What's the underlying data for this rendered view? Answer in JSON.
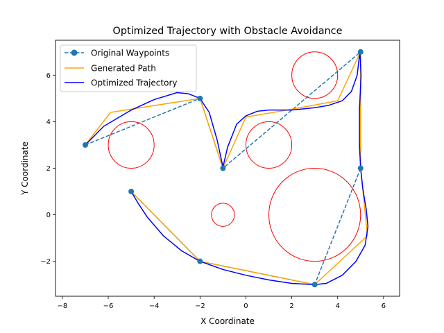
{
  "chart_data": {
    "type": "line",
    "title": "Optimized Trajectory with Obstacle Avoidance",
    "xlabel": "X Coordinate",
    "ylabel": "Y Coordinate",
    "xlim": [
      -8.3,
      6.7
    ],
    "ylim": [
      -3.5,
      7.5
    ],
    "xticks": [
      -8,
      -6,
      -4,
      -2,
      0,
      2,
      4,
      6
    ],
    "yticks": [
      -2,
      0,
      2,
      4,
      6
    ],
    "grid": false,
    "legend_position": "top-left",
    "obstacles": [
      {
        "x": -5,
        "y": 3,
        "r": 1
      },
      {
        "x": 1,
        "y": 3,
        "r": 1
      },
      {
        "x": 3,
        "y": 6,
        "r": 1
      },
      {
        "x": -1,
        "y": 0,
        "r": 0.5
      },
      {
        "x": 3,
        "y": 0,
        "r": 2
      }
    ],
    "obstacle_color": "#ff0000",
    "series": [
      {
        "name": "Original Waypoints",
        "color": "#1f77b4",
        "style": "dashed-markers",
        "points": [
          [
            -7,
            3
          ],
          [
            -2,
            5
          ],
          [
            -1,
            2
          ],
          [
            5,
            7
          ],
          [
            5,
            2
          ],
          [
            3,
            -3
          ],
          [
            -2,
            -2
          ],
          [
            -5,
            1
          ]
        ]
      },
      {
        "name": "Generated Path",
        "color": "#ffa500",
        "style": "solid",
        "points": [
          [
            -7,
            3
          ],
          [
            -5.9,
            4.4
          ],
          [
            -2,
            5
          ],
          [
            -1,
            2
          ],
          [
            0,
            4.2
          ],
          [
            1.8,
            4.5
          ],
          [
            4,
            4.9
          ],
          [
            5,
            7
          ],
          [
            5,
            2
          ],
          [
            5.3,
            -0.9
          ],
          [
            3,
            -3
          ],
          [
            -2,
            -2
          ],
          [
            -5,
            1
          ]
        ]
      },
      {
        "name": "Optimized Trajectory",
        "color": "#0000ff",
        "style": "solid",
        "points": [
          [
            -7,
            3
          ],
          [
            -6.2,
            3.8
          ],
          [
            -5,
            4.5
          ],
          [
            -4,
            4.95
          ],
          [
            -3,
            5.25
          ],
          [
            -2.5,
            5.2
          ],
          [
            -2,
            5.0
          ],
          [
            -1.6,
            4.4
          ],
          [
            -1.25,
            3.2
          ],
          [
            -1,
            2.05
          ],
          [
            -0.8,
            2.9
          ],
          [
            -0.4,
            3.9
          ],
          [
            0,
            4.25
          ],
          [
            0.5,
            4.45
          ],
          [
            1,
            4.5
          ],
          [
            2,
            4.5
          ],
          [
            3,
            4.6
          ],
          [
            3.6,
            4.7
          ],
          [
            4.2,
            4.9
          ],
          [
            4.6,
            5.3
          ],
          [
            4.85,
            6.0
          ],
          [
            4.97,
            7.0
          ],
          [
            5.02,
            6.0
          ],
          [
            4.95,
            4.5
          ],
          [
            4.95,
            3.0
          ],
          [
            5.0,
            2.0
          ],
          [
            5.1,
            1.1
          ],
          [
            5.25,
            0.2
          ],
          [
            5.32,
            -0.5
          ],
          [
            5.2,
            -1.3
          ],
          [
            4.8,
            -2.0
          ],
          [
            4.2,
            -2.6
          ],
          [
            3.5,
            -2.95
          ],
          [
            3,
            -3.0
          ],
          [
            2,
            -2.95
          ],
          [
            1,
            -2.8
          ],
          [
            0,
            -2.6
          ],
          [
            -1,
            -2.35
          ],
          [
            -2,
            -2.0
          ],
          [
            -2.8,
            -1.55
          ],
          [
            -3.6,
            -0.9
          ],
          [
            -4.3,
            -0.1
          ],
          [
            -4.7,
            0.5
          ],
          [
            -5,
            1
          ]
        ]
      }
    ]
  }
}
